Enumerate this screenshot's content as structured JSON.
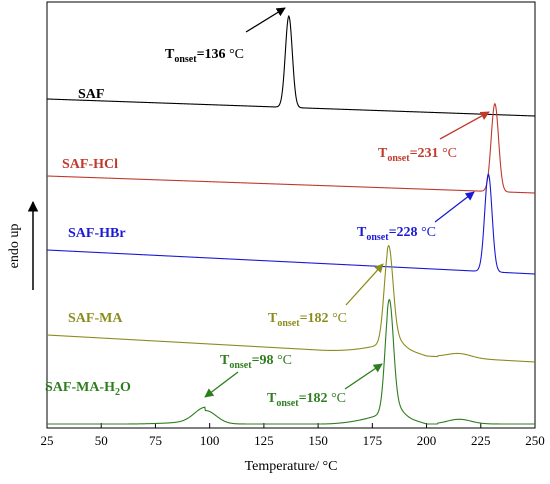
{
  "chart_data": {
    "type": "line",
    "title": "",
    "xlabel": "Temperature/ °C",
    "ylabel": "endo up",
    "xlim": [
      25,
      250
    ],
    "x_ticks": [
      25,
      50,
      75,
      100,
      125,
      150,
      175,
      200,
      225,
      250
    ],
    "y_ticks": [],
    "grid": false,
    "legend": "none (series labelled directly on the plot)",
    "series": [
      {
        "name": "SAF",
        "color": "#000000",
        "baseline": [
          [
            25,
            0.0
          ],
          [
            130,
            0.0
          ],
          [
            250,
            0.0
          ]
        ],
        "peaks": [
          {
            "center": 136.5,
            "height": 8.3,
            "width": 1.6
          }
        ]
      },
      {
        "name": "SAF-HCl",
        "color": "#c0392b",
        "baseline": [
          [
            25,
            0.0
          ],
          [
            225,
            0.0
          ],
          [
            250,
            0.0
          ]
        ],
        "peaks": [
          {
            "center": 231.5,
            "height": 7.2,
            "width": 1.7
          }
        ]
      },
      {
        "name": "SAF-HBr",
        "color": "#1a1ad6",
        "baseline": [
          [
            25,
            0.0
          ],
          [
            222,
            0.0
          ],
          [
            250,
            0.0
          ]
        ],
        "peaks": [
          {
            "center": 228.5,
            "height": 7.8,
            "width": 1.7
          }
        ]
      },
      {
        "name": "SAF-MA",
        "color": "#8c8c1e",
        "baseline": [
          [
            25,
            0.0
          ],
          [
            150,
            0.0
          ],
          [
            210,
            0.0
          ],
          [
            250,
            0.0
          ]
        ],
        "peaks": [
          {
            "center": 182.5,
            "height": 7.6,
            "width": 2.0
          }
        ]
      },
      {
        "name": "SAF-MA-H2O",
        "color": "#2e7d1e",
        "baseline": [
          [
            25,
            0.0
          ],
          [
            150,
            0.0
          ],
          [
            210,
            0.0
          ],
          [
            250,
            0.0
          ]
        ],
        "peaks": [
          {
            "center": 98.0,
            "height": 1.0,
            "width": 5.0
          },
          {
            "center": 182.8,
            "height": 8.0,
            "width": 1.9
          }
        ]
      }
    ],
    "annotations": [
      {
        "series": "SAF",
        "text_main": "T",
        "text_sub": "onset",
        "text_value": "=136",
        "text_unit": " °C",
        "x": 136
      },
      {
        "series": "SAF-HCl",
        "text_main": "T",
        "text_sub": "onset",
        "text_value": "=231",
        "text_unit": " °C",
        "x": 231
      },
      {
        "series": "SAF-HBr",
        "text_main": "T",
        "text_sub": "onset",
        "text_value": "=228",
        "text_unit": " °C",
        "x": 228
      },
      {
        "series": "SAF-MA",
        "text_main": "T",
        "text_sub": "onset",
        "text_value": "=182",
        "text_unit": " °C",
        "x": 182
      },
      {
        "series": "SAF-MA-H2O",
        "text_main": "T",
        "text_sub": "onset",
        "text_value": "=98",
        "text_unit": " °C",
        "x": 98
      },
      {
        "series": "SAF-MA-H2O",
        "text_main": "T",
        "text_sub": "onset",
        "text_value": "=182",
        "text_unit": " °C",
        "x": 182
      }
    ]
  }
}
